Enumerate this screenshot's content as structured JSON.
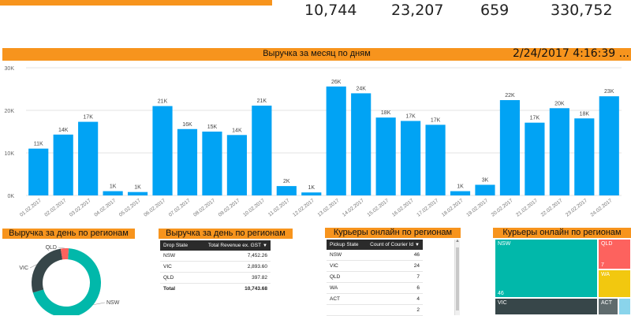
{
  "kpis": [
    "10,744",
    "23,207",
    "659",
    "330,752"
  ],
  "main_chart": {
    "title": "Выручка за месяц по дням",
    "timestamp": "2/24/2017 4:16:39 ...",
    "bar_color": "#01a3f4"
  },
  "chart_data": [
    {
      "type": "bar",
      "title": "Выручка за месяц по дням",
      "categories": [
        "01.02.2017",
        "02.02.2017",
        "03.02.2017",
        "04.02.2017",
        "05.02.2017",
        "06.02.2017",
        "07.02.2017",
        "08.02.2017",
        "09.02.2017",
        "10.02.2017",
        "11.02.2017",
        "12.02.2017",
        "13.02.2017",
        "14.02.2017",
        "15.02.2017",
        "16.02.2017",
        "17.02.2017",
        "18.02.2017",
        "19.02.2017",
        "20.02.2017",
        "21.02.2017",
        "22.02.2017",
        "23.02.2017",
        "24.02.2017"
      ],
      "values": [
        11000,
        14300,
        17300,
        1000,
        800,
        21000,
        15600,
        15000,
        14200,
        21100,
        2200,
        700,
        25600,
        24000,
        18300,
        17500,
        16600,
        1000,
        2500,
        22400,
        17100,
        20500,
        18100,
        23300
      ],
      "data_labels": [
        "11K",
        "14K",
        "17K",
        "1K",
        "1K",
        "21K",
        "16K",
        "15K",
        "14K",
        "21K",
        "2K",
        "1K",
        "26K",
        "24K",
        "18K",
        "17K",
        "17K",
        "1K",
        "3K",
        "22K",
        "17K",
        "20K",
        "18K",
        "23K"
      ],
      "yticks": [
        "0K",
        "10K",
        "20K",
        "30K"
      ],
      "ylim": [
        0,
        30000
      ],
      "grid": true
    },
    {
      "type": "pie",
      "title": "Выручка за день по регионам",
      "labels": [
        "NSW",
        "VIC",
        "QLD"
      ],
      "values": [
        7452.26,
        2893.6,
        397.82
      ],
      "colors": [
        "#01b8aa",
        "#374649",
        "#fd625e"
      ]
    },
    {
      "type": "table",
      "title": "Выручка за день по регионам",
      "columns": [
        "Drop State",
        "Total Revenue ex. GST"
      ],
      "rows": [
        [
          "NSW",
          "7,452.26"
        ],
        [
          "VIC",
          "2,893.60"
        ],
        [
          "QLD",
          "397.82"
        ]
      ],
      "total": [
        "Total",
        "10,743.68"
      ]
    },
    {
      "type": "table",
      "title": "Курьеры онлайн по регионам",
      "columns": [
        "Pickup State",
        "Count of Courier Id"
      ],
      "rows": [
        [
          "NSW",
          "46"
        ],
        [
          "VIC",
          "24"
        ],
        [
          "QLD",
          "7"
        ],
        [
          "WA",
          "6"
        ],
        [
          "ACT",
          "4"
        ],
        [
          "",
          "2"
        ]
      ]
    },
    {
      "type": "treemap",
      "title": "Курьеры онлайн по регионам",
      "labels": [
        "NSW",
        "VIC",
        "QLD",
        "WA",
        "ACT"
      ],
      "values": [
        46,
        24,
        7,
        6,
        4
      ],
      "value_labels": [
        "46",
        "",
        "7",
        "",
        ""
      ],
      "colors": [
        "#01b8aa",
        "#374649",
        "#fd625e",
        "#f2c80f",
        "#5f6b6d"
      ]
    }
  ]
}
